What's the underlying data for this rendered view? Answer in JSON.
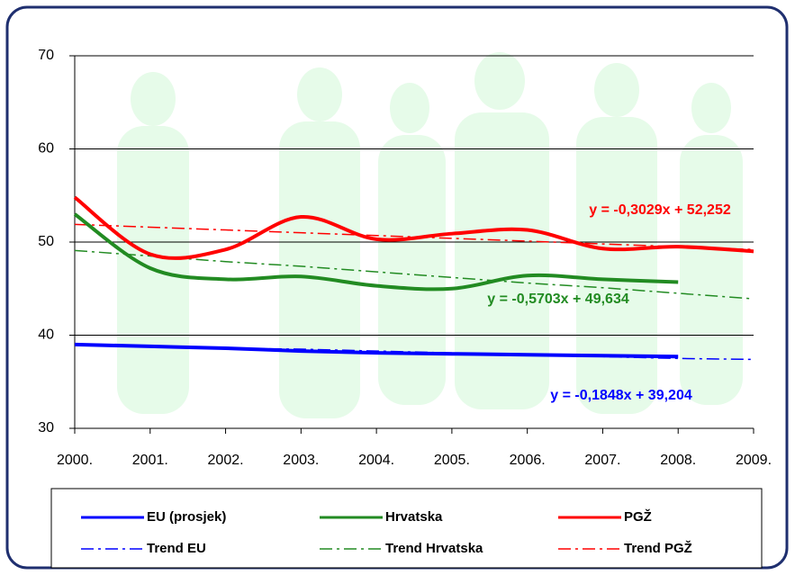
{
  "chart_data": {
    "type": "line",
    "categories": [
      "2000.",
      "2001.",
      "2002.",
      "2003.",
      "2004.",
      "2005.",
      "2006.",
      "2007.",
      "2008.",
      "2009."
    ],
    "ylim": [
      30,
      70
    ],
    "yticks": [
      30,
      40,
      50,
      60,
      70
    ],
    "grid": true,
    "series": [
      {
        "name": "EU (prosjek)",
        "color": "#0000ff",
        "style": "solid",
        "values": [
          39.0,
          38.8,
          38.6,
          38.3,
          38.1,
          38.0,
          37.9,
          37.8,
          37.7,
          null
        ]
      },
      {
        "name": "Hrvatska",
        "color": "#228b22",
        "style": "solid",
        "values": [
          53.0,
          47.2,
          46.0,
          46.3,
          45.3,
          45.0,
          46.4,
          46.0,
          45.7,
          null
        ]
      },
      {
        "name": "PGŽ",
        "color": "#ff0000",
        "style": "solid",
        "values": [
          54.8,
          48.7,
          49.2,
          52.7,
          50.3,
          50.9,
          51.3,
          49.3,
          49.5,
          49.0
        ]
      },
      {
        "name": "Trend EU",
        "color": "#0000ff",
        "style": "dashdot",
        "values": [
          39.0,
          38.8,
          38.6,
          38.5,
          38.3,
          38.1,
          37.9,
          37.7,
          37.5,
          37.4
        ]
      },
      {
        "name": "Trend Hrvatska",
        "color": "#228b22",
        "style": "dashdot",
        "values": [
          49.1,
          48.5,
          47.9,
          47.4,
          46.8,
          46.2,
          45.6,
          45.1,
          44.5,
          43.9
        ]
      },
      {
        "name": "Trend PGŽ",
        "color": "#ff0000",
        "style": "dashdot",
        "values": [
          51.9,
          51.6,
          51.3,
          51.0,
          50.7,
          50.4,
          50.1,
          49.8,
          49.5,
          49.2
        ]
      }
    ],
    "annotations": [
      {
        "text": "y = -0,3029x + 52,252",
        "color": "#ff0000"
      },
      {
        "text": "y = -0,5703x + 49,634",
        "color": "#228b22"
      },
      {
        "text": "y = -0,1848x + 39,204",
        "color": "#0000ff"
      }
    ]
  }
}
